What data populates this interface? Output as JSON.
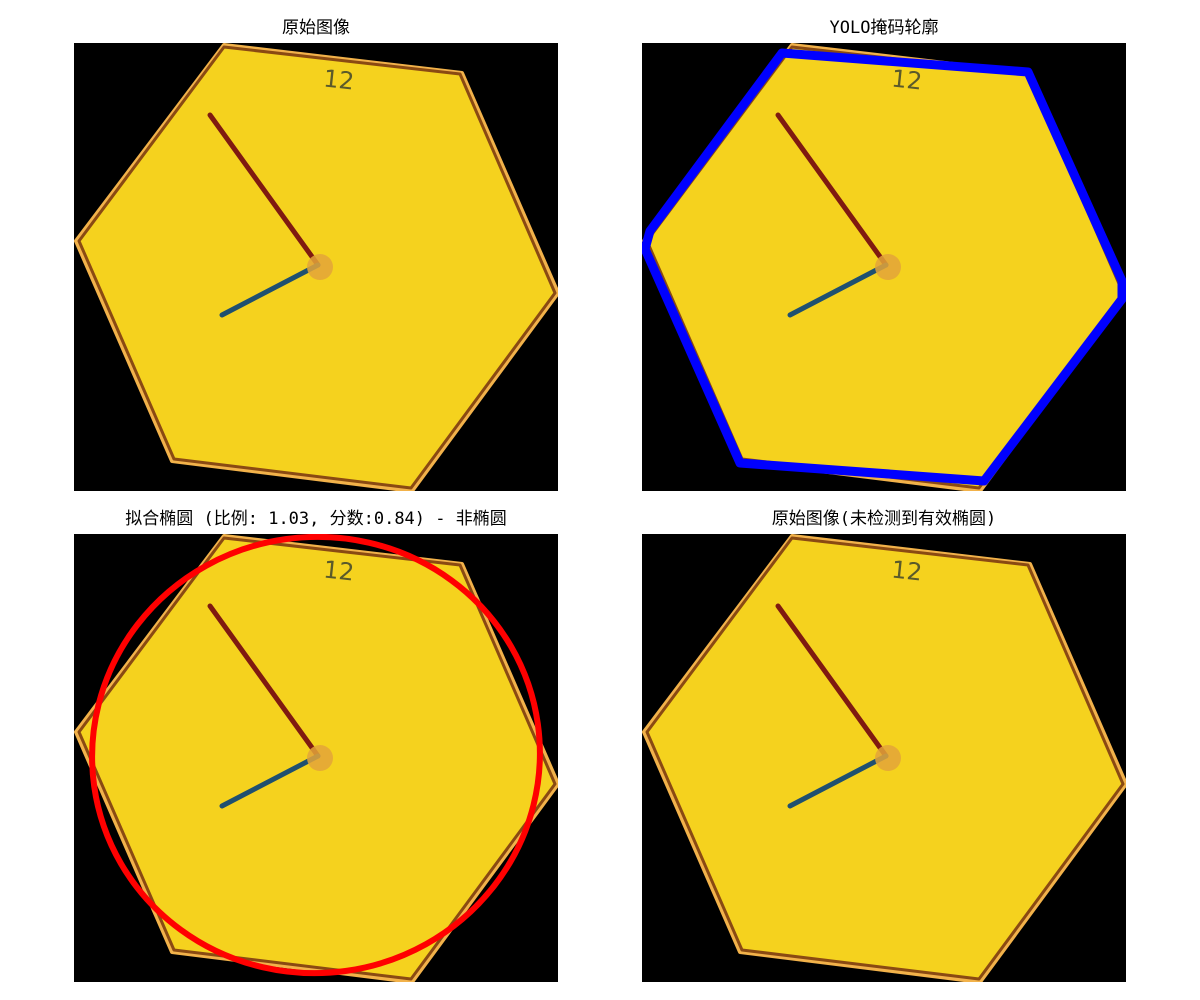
{
  "panels": [
    {
      "id": "original",
      "title": "原始图像"
    },
    {
      "id": "yolo-mask",
      "title": "YOLO掩码轮廓"
    },
    {
      "id": "ellipse-fit",
      "title": "拟合椭圆 (比例: 1.03, 分数:0.84) - 非椭圆"
    },
    {
      "id": "result",
      "title": "原始图像(未检测到有效椭圆)"
    }
  ],
  "clock": {
    "number_label": "12"
  },
  "colors": {
    "background": "#000000",
    "hexagon_fill": "#f5d21e",
    "hexagon_border": "#8a4a12",
    "hexagon_glow": "#f2b24a",
    "hour_hand": "#7f1a10",
    "minute_hand": "#1f5070",
    "hub": "#e3a43a",
    "mask_contour": "#0000ff",
    "fitted_ellipse": "#ff0000"
  }
}
